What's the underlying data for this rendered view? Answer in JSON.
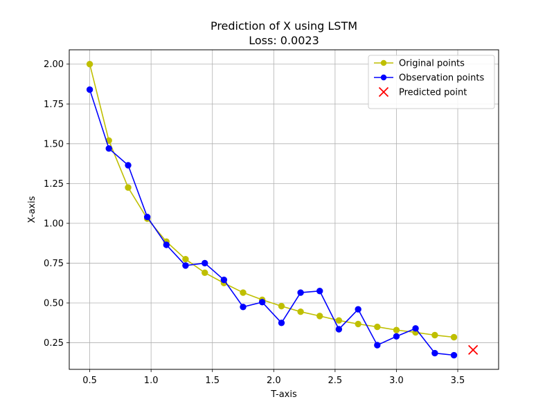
{
  "chart_data": {
    "type": "line",
    "title": "Prediction of X using LSTM",
    "subtitle": "Loss: 0.0023",
    "xlabel": "T-axis",
    "ylabel": "X-axis",
    "xlim": [
      0.333,
      3.833
    ],
    "ylim": [
      0.083,
      2.09
    ],
    "xticks": [
      0.5,
      1.0,
      1.5,
      2.0,
      2.5,
      3.0,
      3.5
    ],
    "xtick_labels": [
      "0.5",
      "1.0",
      "1.5",
      "2.0",
      "2.5",
      "3.0",
      "3.5"
    ],
    "yticks": [
      0.25,
      0.5,
      0.75,
      1.0,
      1.25,
      1.5,
      1.75,
      2.0
    ],
    "ytick_labels": [
      "0.25",
      "0.50",
      "0.75",
      "1.00",
      "1.25",
      "1.50",
      "1.75",
      "2.00"
    ],
    "grid": true,
    "legend_position": "top-right",
    "series": [
      {
        "name": "Original points",
        "color": "#bfbf00",
        "marker": "circle",
        "points": [
          [
            0.5,
            2.0
          ],
          [
            0.656,
            1.52
          ],
          [
            0.813,
            1.225
          ],
          [
            0.969,
            1.03
          ],
          [
            1.125,
            0.885
          ],
          [
            1.281,
            0.775
          ],
          [
            1.438,
            0.69
          ],
          [
            1.594,
            0.625
          ],
          [
            1.75,
            0.565
          ],
          [
            1.906,
            0.52
          ],
          [
            2.063,
            0.48
          ],
          [
            2.219,
            0.445
          ],
          [
            2.375,
            0.418
          ],
          [
            2.531,
            0.39
          ],
          [
            2.688,
            0.368
          ],
          [
            2.844,
            0.35
          ],
          [
            3.0,
            0.33
          ],
          [
            3.156,
            0.315
          ],
          [
            3.313,
            0.298
          ],
          [
            3.469,
            0.285
          ]
        ]
      },
      {
        "name": "Observation points",
        "color": "#0000ff",
        "marker": "circle",
        "points": [
          [
            0.5,
            1.84
          ],
          [
            0.656,
            1.47
          ],
          [
            0.813,
            1.365
          ],
          [
            0.969,
            1.04
          ],
          [
            1.125,
            0.865
          ],
          [
            1.281,
            0.735
          ],
          [
            1.438,
            0.75
          ],
          [
            1.594,
            0.645
          ],
          [
            1.75,
            0.475
          ],
          [
            1.906,
            0.505
          ],
          [
            2.063,
            0.375
          ],
          [
            2.219,
            0.565
          ],
          [
            2.375,
            0.575
          ],
          [
            2.531,
            0.335
          ],
          [
            2.688,
            0.46
          ],
          [
            2.844,
            0.235
          ],
          [
            3.0,
            0.29
          ],
          [
            3.156,
            0.34
          ],
          [
            3.313,
            0.185
          ],
          [
            3.469,
            0.172
          ]
        ]
      },
      {
        "name": "Predicted point",
        "color": "#ff0000",
        "marker": "x",
        "points": [
          [
            3.625,
            0.205
          ]
        ]
      }
    ]
  }
}
